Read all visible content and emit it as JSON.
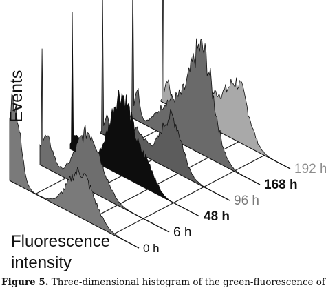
{
  "chart_data": {
    "type": "area",
    "chart_kind": "3d-stacked-histogram",
    "ylabel": "Events",
    "xlabel_line1": "Fluorescence",
    "xlabel_line2": "intensity",
    "series": [
      {
        "name": "0 h",
        "color": "#7a7a7a",
        "label_color": "#111111"
      },
      {
        "name": "6 h",
        "color": "#6e6e6e",
        "label_color": "#111111"
      },
      {
        "name": "48 h",
        "color": "#0d0d0d",
        "label_color": "#111111"
      },
      {
        "name": "96 h",
        "color": "#5c5c5c",
        "label_color": "#7a7a7a"
      },
      {
        "name": "168 h",
        "color": "#6a6a6a",
        "label_color": "#111111"
      },
      {
        "name": "192 h",
        "color": "#a9a9a9",
        "label_color": "#8c8c8c"
      }
    ],
    "grid": false
  },
  "caption": {
    "label": "Figure 5.",
    "text": " Three-dimensional histogram of the green-fluorescence of rat"
  }
}
